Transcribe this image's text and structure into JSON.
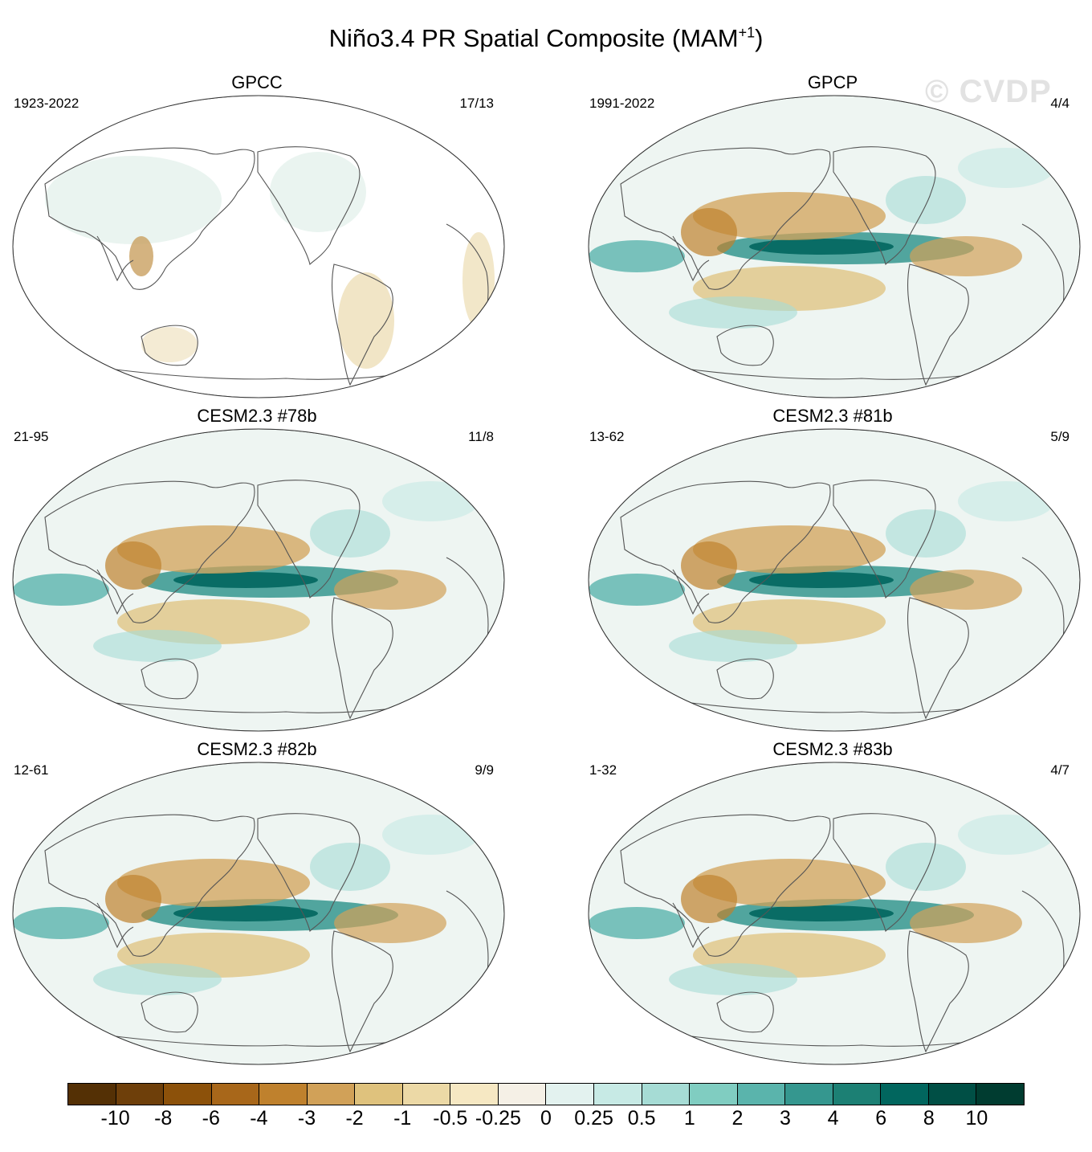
{
  "title": {
    "main": "Niño3.4 PR Spatial Composite (MAM",
    "superscript": "+1",
    "close": ")"
  },
  "watermark": "© CVDP",
  "panels": [
    {
      "title": "GPCC",
      "years": "1923-2022",
      "count": "17/13",
      "coverage": "land"
    },
    {
      "title": "GPCP",
      "years": "1991-2022",
      "count": "4/4",
      "coverage": "global"
    },
    {
      "title": "CESM2.3 #78b",
      "years": "21-95",
      "count": "11/8",
      "coverage": "global"
    },
    {
      "title": "CESM2.3 #81b",
      "years": "13-62",
      "count": "5/9",
      "coverage": "global"
    },
    {
      "title": "CESM2.3 #82b",
      "years": "12-61",
      "count": "9/9",
      "coverage": "global"
    },
    {
      "title": "CESM2.3 #83b",
      "years": "1-32",
      "count": "4/7",
      "coverage": "global"
    }
  ],
  "colorbar": {
    "labels": [
      "-10",
      "-8",
      "-6",
      "-4",
      "-3",
      "-2",
      "-1",
      "-0.5",
      "-0.25",
      "0",
      "0.25",
      "0.5",
      "1",
      "2",
      "3",
      "4",
      "6",
      "8",
      "10"
    ],
    "colors": [
      "#543005",
      "#6e3f0a",
      "#8c510a",
      "#a8671a",
      "#bf812d",
      "#d1a158",
      "#dfc27d",
      "#ecd9a6",
      "#f6e8c3",
      "#f5f0e6",
      "#e3f2ef",
      "#c7eae5",
      "#a6dcd5",
      "#80cdc1",
      "#5ab4ac",
      "#35978f",
      "#1c8074",
      "#01665e",
      "#004f45",
      "#003c30"
    ]
  }
}
